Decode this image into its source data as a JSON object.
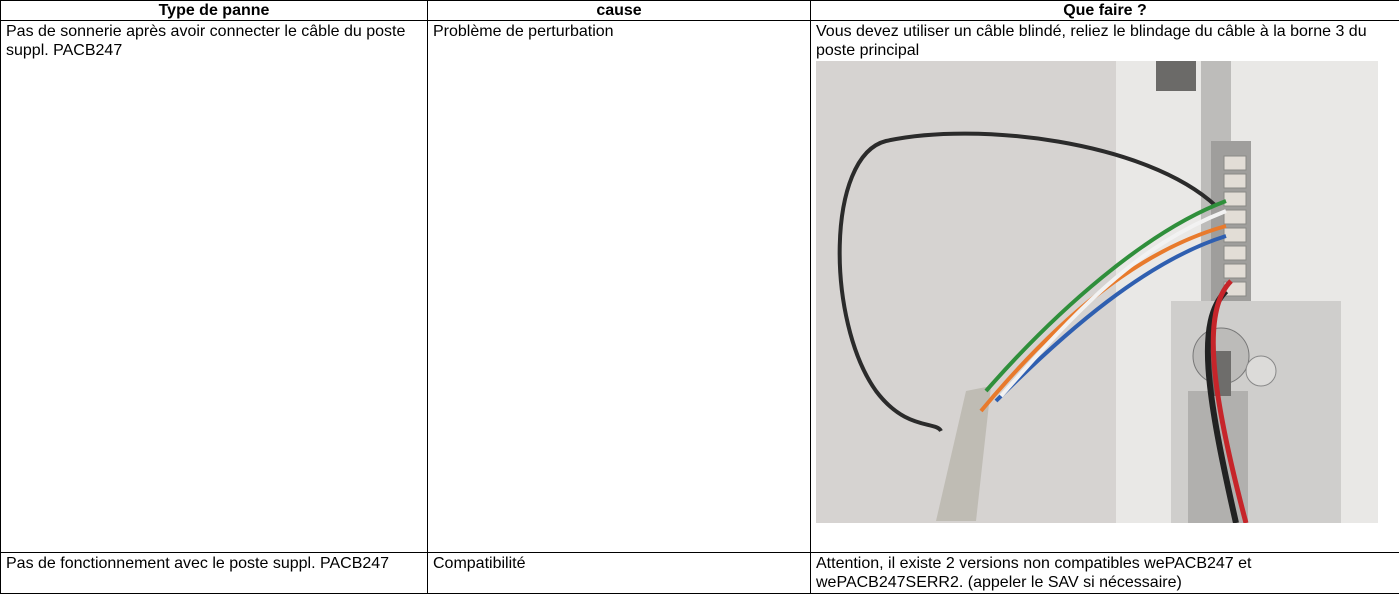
{
  "table": {
    "header": [
      "Type de panne",
      "cause",
      "Que faire ?"
    ],
    "rows": [
      [
        "Pas de sonnerie après avoir connecter le câble du poste suppl. PACB247",
        "Problème de perturbation",
        "Vous devez utiliser un câble blindé, reliez le blindage du câble à la borne 3 du poste principal"
      ],
      [
        "Pas de fonctionnement avec le poste suppl. PACB247",
        "Compatibilité",
        "Attention, il existe 2 versions non compatibles wePACB247 et wePACB247SERR2. (appeler le SAV si nécessaire)"
      ]
    ]
  }
}
